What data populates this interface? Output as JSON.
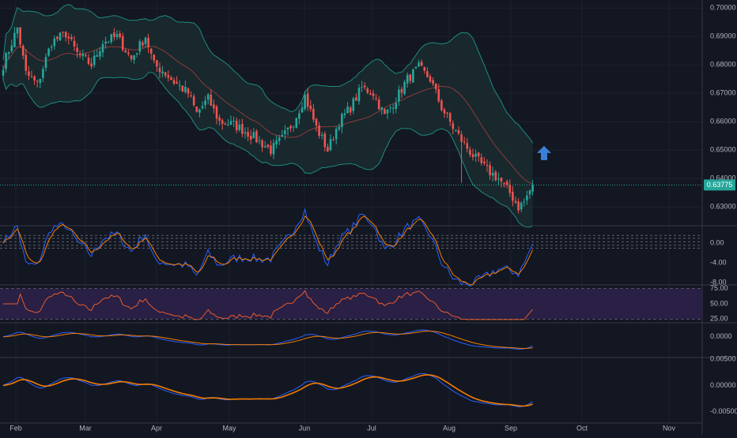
{
  "colors": {
    "background": "#131722",
    "grid": "#1e2230",
    "separator": "#363a45",
    "up": "#26a69a",
    "down": "#ef5350",
    "bb_band": "#1f8a7d",
    "bb_basis": "#8e3a3a",
    "bb_fill": "#1a2b2f",
    "price_line": "#26a69a",
    "price_tag": "#26a69a",
    "blue": "#2962ff",
    "orange": "#f57c00",
    "rsi_line": "#e65c2a",
    "rsi_fill": "#2a1f45",
    "axis_text": "#b2b5be",
    "arrow": "#3a7fd5"
  },
  "annotations": {
    "arrow_icon": "up-arrow-icon",
    "arrow_index": 190,
    "arrow_price": 0.649
  },
  "chart_data": [
    {
      "type": "candlestick",
      "name": "price",
      "x_axis_labels": [
        "Feb",
        "Mar",
        "Apr",
        "May",
        "Jun",
        "Jul",
        "Aug",
        "Sep",
        "Oct",
        "Nov"
      ],
      "y_ticks": [
        0.7,
        0.69,
        0.68,
        0.67,
        0.66,
        0.65,
        0.64,
        0.63
      ],
      "y_tick_labels": [
        "0.70000",
        "0.69000",
        "0.68000",
        "0.67000",
        "0.66000",
        "0.65000",
        "0.64000",
        "0.63000"
      ],
      "ylim": [
        0.6237,
        0.7028
      ],
      "last_price": 0.63775,
      "last_price_label": "0.63775",
      "anchors": [
        [
          0,
          0.68
        ],
        [
          5,
          0.693
        ],
        [
          8,
          0.677
        ],
        [
          12,
          0.673
        ],
        [
          17,
          0.688
        ],
        [
          22,
          0.691
        ],
        [
          26,
          0.684
        ],
        [
          31,
          0.68
        ],
        [
          35,
          0.688
        ],
        [
          40,
          0.69
        ],
        [
          45,
          0.682
        ],
        [
          50,
          0.69
        ],
        [
          53,
          0.68
        ],
        [
          56,
          0.678
        ],
        [
          60,
          0.674
        ],
        [
          65,
          0.67
        ],
        [
          68,
          0.663
        ],
        [
          72,
          0.668
        ],
        [
          76,
          0.66
        ],
        [
          81,
          0.659
        ],
        [
          86,
          0.656
        ],
        [
          90,
          0.653
        ],
        [
          94,
          0.65
        ],
        [
          98,
          0.654
        ],
        [
          102,
          0.66
        ],
        [
          106,
          0.669
        ],
        [
          110,
          0.658
        ],
        [
          114,
          0.65
        ],
        [
          118,
          0.66
        ],
        [
          122,
          0.665
        ],
        [
          126,
          0.672
        ],
        [
          130,
          0.67
        ],
        [
          134,
          0.662
        ],
        [
          138,
          0.668
        ],
        [
          142,
          0.675
        ],
        [
          146,
          0.679
        ],
        [
          150,
          0.675
        ],
        [
          154,
          0.665
        ],
        [
          158,
          0.658
        ],
        [
          162,
          0.652
        ],
        [
          166,
          0.647
        ],
        [
          170,
          0.643
        ],
        [
          174,
          0.64
        ],
        [
          178,
          0.635
        ],
        [
          181,
          0.63
        ],
        [
          183,
          0.6318
        ],
        [
          186,
          0.63775
        ]
      ]
    },
    {
      "type": "line",
      "name": "oscillator",
      "y_tick_labels": [
        "0.00",
        "-4.00",
        "-8.00"
      ],
      "y_ticks": [
        0,
        -4,
        -8
      ],
      "ylim": [
        -8.3,
        3.4
      ]
    },
    {
      "type": "line",
      "name": "rsi",
      "y_tick_labels": [
        "75.00",
        "50.00",
        "25.00"
      ],
      "y_ticks": [
        75,
        50,
        25
      ],
      "ylim": [
        20,
        80
      ]
    },
    {
      "type": "line",
      "name": "macd",
      "y_tick_labels": [
        "0.0000"
      ],
      "y_ticks": [
        0
      ],
      "ylim": [
        -0.012,
        0.008
      ]
    },
    {
      "type": "line",
      "name": "momentum",
      "y_tick_labels": [
        "0.00500",
        "0.00000",
        "-0.00500"
      ],
      "y_ticks": [
        0.005,
        0,
        -0.005
      ],
      "ylim": [
        -0.0072,
        0.0052
      ]
    }
  ]
}
